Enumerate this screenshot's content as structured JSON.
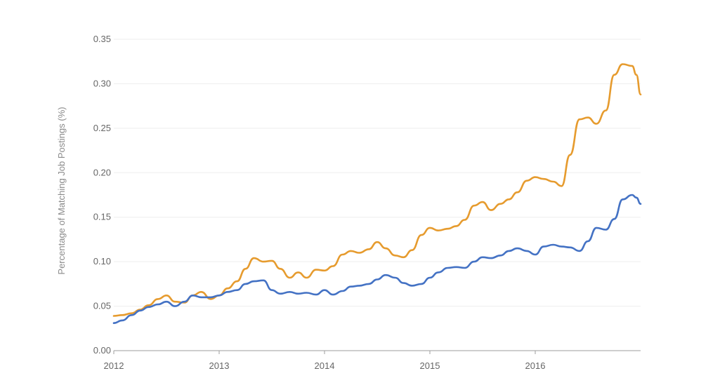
{
  "chart_data": {
    "type": "line",
    "title": "",
    "xlabel": "",
    "ylabel": "Percentage of Matching Job Postings (%)",
    "xlim": [
      2012.0,
      2017.0
    ],
    "ylim": [
      0.0,
      0.35
    ],
    "x_ticks": [
      2012,
      2013,
      2014,
      2015,
      2016
    ],
    "x_tick_labels": [
      "2012",
      "2013",
      "2014",
      "2015",
      "2016"
    ],
    "y_ticks": [
      0.0,
      0.05,
      0.1,
      0.15,
      0.2,
      0.25,
      0.3,
      0.35
    ],
    "y_tick_labels": [
      "0.00",
      "0.05",
      "0.10",
      "0.15",
      "0.20",
      "0.25",
      "0.30",
      "0.35"
    ],
    "grid": true,
    "legend": "none",
    "series": [
      {
        "color": "#e69b2e",
        "x": [
          2012.0,
          2012.08,
          2012.17,
          2012.25,
          2012.33,
          2012.42,
          2012.5,
          2012.58,
          2012.67,
          2012.75,
          2012.83,
          2012.92,
          2013.0,
          2013.08,
          2013.17,
          2013.25,
          2013.33,
          2013.42,
          2013.5,
          2013.58,
          2013.67,
          2013.75,
          2013.83,
          2013.92,
          2014.0,
          2014.08,
          2014.17,
          2014.25,
          2014.33,
          2014.42,
          2014.5,
          2014.58,
          2014.67,
          2014.75,
          2014.83,
          2014.92,
          2015.0,
          2015.08,
          2015.17,
          2015.25,
          2015.33,
          2015.42,
          2015.5,
          2015.58,
          2015.67,
          2015.75,
          2015.83,
          2015.92,
          2016.0,
          2016.08,
          2016.17,
          2016.25,
          2016.33,
          2016.42,
          2016.5,
          2016.58,
          2016.67,
          2016.75,
          2016.83,
          2016.92,
          2016.96,
          2017.0
        ],
        "y": [
          0.039,
          0.04,
          0.042,
          0.046,
          0.051,
          0.058,
          0.062,
          0.055,
          0.054,
          0.062,
          0.066,
          0.058,
          0.062,
          0.07,
          0.078,
          0.092,
          0.104,
          0.1,
          0.101,
          0.092,
          0.082,
          0.088,
          0.082,
          0.091,
          0.09,
          0.095,
          0.108,
          0.112,
          0.11,
          0.114,
          0.122,
          0.115,
          0.107,
          0.105,
          0.113,
          0.13,
          0.138,
          0.135,
          0.137,
          0.14,
          0.147,
          0.163,
          0.167,
          0.158,
          0.165,
          0.17,
          0.178,
          0.191,
          0.195,
          0.193,
          0.19,
          0.185,
          0.22,
          0.26,
          0.262,
          0.255,
          0.27,
          0.31,
          0.322,
          0.32,
          0.31,
          0.288
        ]
      },
      {
        "color": "#4472c4",
        "x": [
          2012.0,
          2012.08,
          2012.17,
          2012.25,
          2012.33,
          2012.42,
          2012.5,
          2012.58,
          2012.67,
          2012.75,
          2012.83,
          2012.92,
          2013.0,
          2013.08,
          2013.17,
          2013.25,
          2013.33,
          2013.42,
          2013.5,
          2013.58,
          2013.67,
          2013.75,
          2013.83,
          2013.92,
          2014.0,
          2014.08,
          2014.17,
          2014.25,
          2014.33,
          2014.42,
          2014.5,
          2014.58,
          2014.67,
          2014.75,
          2014.83,
          2014.92,
          2015.0,
          2015.08,
          2015.17,
          2015.25,
          2015.33,
          2015.42,
          2015.5,
          2015.58,
          2015.67,
          2015.75,
          2015.83,
          2015.92,
          2016.0,
          2016.08,
          2016.17,
          2016.25,
          2016.33,
          2016.42,
          2016.5,
          2016.58,
          2016.67,
          2016.75,
          2016.83,
          2016.92,
          2016.96,
          2017.0
        ],
        "y": [
          0.031,
          0.034,
          0.04,
          0.045,
          0.049,
          0.052,
          0.055,
          0.05,
          0.055,
          0.062,
          0.06,
          0.06,
          0.062,
          0.066,
          0.068,
          0.075,
          0.078,
          0.079,
          0.068,
          0.064,
          0.066,
          0.064,
          0.065,
          0.063,
          0.068,
          0.063,
          0.067,
          0.072,
          0.073,
          0.075,
          0.08,
          0.085,
          0.082,
          0.076,
          0.073,
          0.075,
          0.082,
          0.088,
          0.093,
          0.094,
          0.093,
          0.1,
          0.105,
          0.104,
          0.107,
          0.112,
          0.115,
          0.112,
          0.108,
          0.117,
          0.119,
          0.117,
          0.116,
          0.112,
          0.123,
          0.138,
          0.136,
          0.148,
          0.17,
          0.175,
          0.172,
          0.165
        ]
      }
    ]
  }
}
